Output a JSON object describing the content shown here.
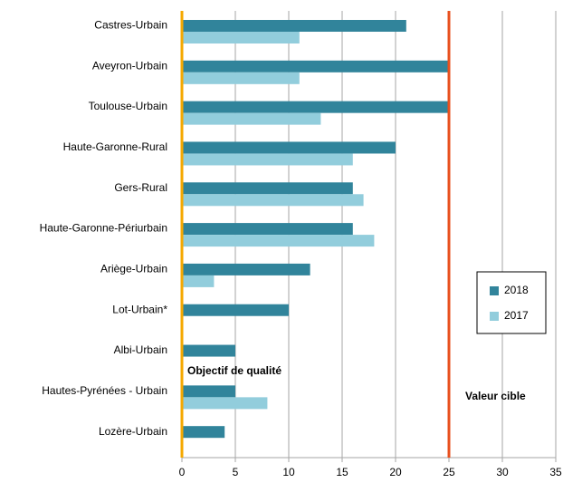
{
  "chart_data": {
    "type": "bar",
    "orientation": "horizontal",
    "categories": [
      "Castres-Urbain",
      "Aveyron-Urbain",
      "Toulouse-Urbain",
      "Haute-Garonne-Rural",
      "Gers-Rural",
      "Haute-Garonne-Périurbain",
      "Ariège-Urbain",
      "Lot-Urbain*",
      "Albi-Urbain",
      "Hautes-Pyrénées - Urbain",
      "Lozère-Urbain"
    ],
    "series": [
      {
        "name": "2018",
        "color": "#31849b",
        "values": [
          21,
          25,
          25,
          20,
          16,
          16,
          12,
          10,
          5,
          5,
          4
        ]
      },
      {
        "name": "2017",
        "color": "#92cddc",
        "values": [
          11,
          11,
          13,
          16,
          17,
          18,
          3,
          null,
          null,
          8,
          null
        ]
      }
    ],
    "xlim": [
      0,
      35
    ],
    "xticks": [
      0,
      5,
      10,
      15,
      20,
      25,
      30,
      35
    ],
    "grid": true,
    "legend": "right",
    "annotations": [
      {
        "text": "Objectif de qualité",
        "x": 0,
        "color": "#f5a800"
      },
      {
        "text": "Valeur cible",
        "x": 25,
        "color": "#e8501e"
      }
    ]
  }
}
